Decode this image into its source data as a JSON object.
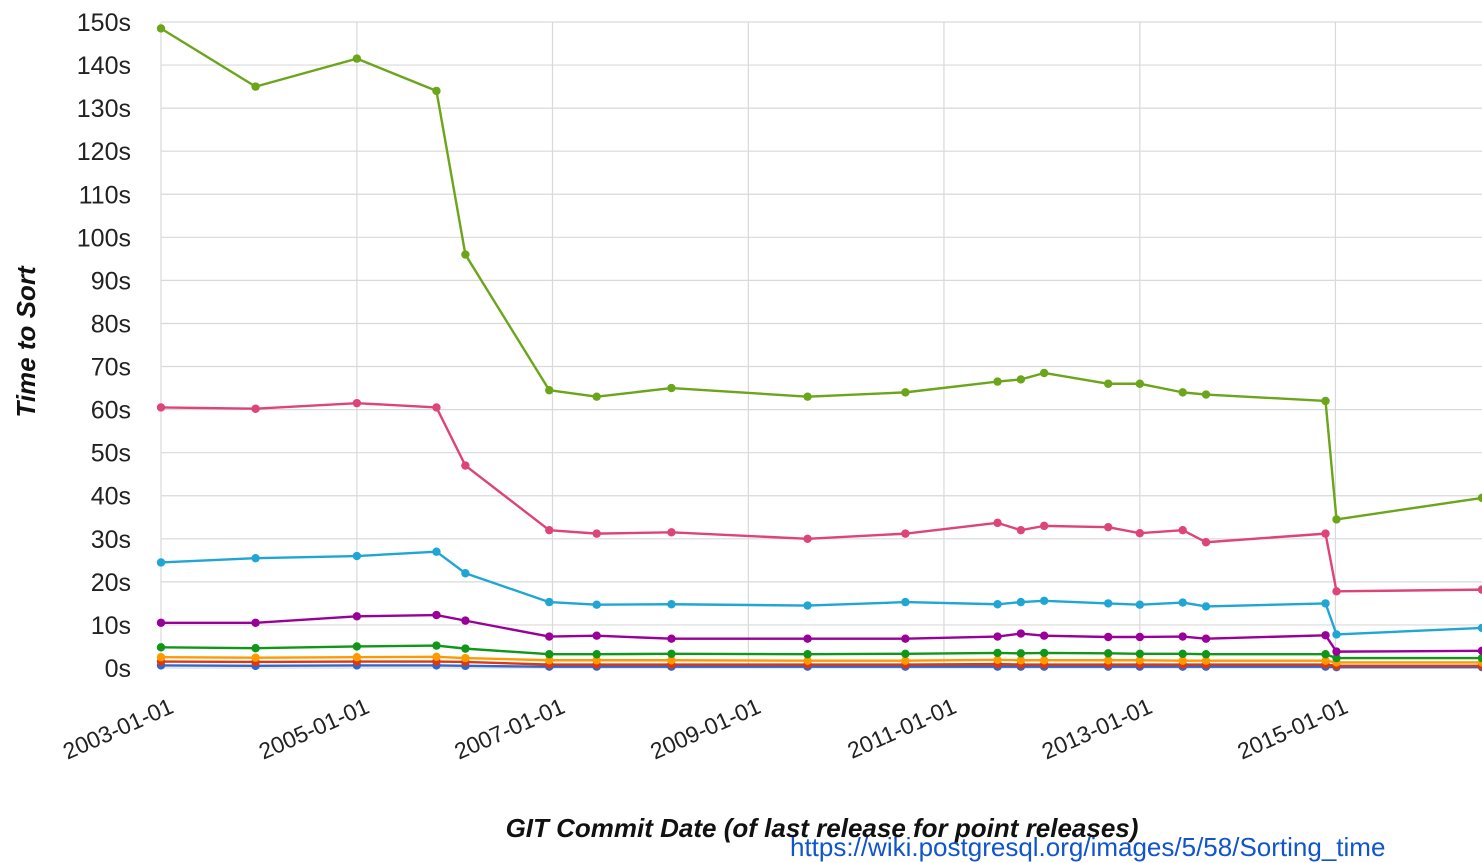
{
  "chart_data": {
    "type": "line",
    "title": "",
    "xlabel": "GIT Commit Date (of last release for point releases)",
    "ylabel": "Time to Sort",
    "x_axis": {
      "type": "date",
      "range": [
        "2003-01-01",
        "2016-07-01"
      ],
      "ticks": [
        "2003-01-01",
        "2005-01-01",
        "2007-01-01",
        "2009-01-01",
        "2011-01-01",
        "2013-01-01",
        "2015-01-01"
      ]
    },
    "y_axis": {
      "range": [
        0,
        150
      ],
      "ticks": [
        0,
        10,
        20,
        30,
        40,
        50,
        60,
        70,
        80,
        90,
        100,
        110,
        120,
        130,
        140,
        150
      ],
      "tick_labels": [
        "0s",
        "10s",
        "20s",
        "30s",
        "40s",
        "50s",
        "60s",
        "70s",
        "80s",
        "90s",
        "100s",
        "110s",
        "120s",
        "130s",
        "140s",
        "150s"
      ]
    },
    "grid": true,
    "legend": "none",
    "x": [
      "2003-01-01",
      "2003-12-20",
      "2005-01-01",
      "2005-10-25",
      "2006-02-10",
      "2006-12-20",
      "2007-06-15",
      "2008-03-20",
      "2009-08-10",
      "2010-08-10",
      "2011-07-20",
      "2011-10-15",
      "2012-01-10",
      "2012-09-05",
      "2013-01-01",
      "2013-06-10",
      "2013-09-05",
      "2014-11-25",
      "2015-01-05",
      "2016-07-01"
    ],
    "series": [
      {
        "color": "#6aa51a",
        "values": [
          148.5,
          135,
          141.5,
          134,
          96,
          64.5,
          63,
          65,
          63,
          64,
          66.5,
          67,
          68.5,
          66,
          66,
          64,
          63.5,
          62,
          34.5,
          39.5
        ]
      },
      {
        "color": "#dd4477",
        "values": [
          60.5,
          60.2,
          61.5,
          60.5,
          47,
          32,
          31.2,
          31.5,
          30,
          31.2,
          33.7,
          32,
          33,
          32.7,
          31.3,
          32,
          29.2,
          31.2,
          17.8,
          18.2
        ]
      },
      {
        "color": "#1fa6d4",
        "values": [
          24.5,
          25.5,
          26,
          27,
          22,
          15.3,
          14.7,
          14.8,
          14.5,
          15.3,
          14.8,
          15.3,
          15.6,
          15,
          14.7,
          15.2,
          14.3,
          15,
          7.8,
          9.3
        ]
      },
      {
        "color": "#990099",
        "values": [
          10.5,
          10.5,
          12,
          12.3,
          11,
          7.3,
          7.5,
          6.8,
          6.8,
          6.8,
          7.3,
          8,
          7.5,
          7.2,
          7.2,
          7.3,
          6.8,
          7.6,
          3.8,
          4
        ]
      },
      {
        "color": "#109618",
        "values": [
          4.8,
          4.6,
          5,
          5.2,
          4.5,
          3.2,
          3.2,
          3.3,
          3.2,
          3.3,
          3.5,
          3.4,
          3.5,
          3.4,
          3.3,
          3.3,
          3.2,
          3.2,
          2.3,
          2.3
        ]
      },
      {
        "color": "#ff9900",
        "values": [
          2.5,
          2.4,
          2.5,
          2.6,
          2.3,
          1.8,
          1.8,
          1.8,
          1.7,
          1.7,
          1.9,
          1.8,
          1.8,
          1.8,
          1.8,
          1.7,
          1.7,
          1.7,
          1.3,
          1.3
        ]
      },
      {
        "color": "#dc3912",
        "values": [
          1.5,
          1.4,
          1.5,
          1.5,
          1.4,
          0.8,
          0.8,
          0.8,
          0.8,
          0.8,
          0.9,
          0.8,
          0.8,
          0.8,
          0.8,
          0.8,
          0.8,
          0.8,
          0.5,
          0.5
        ]
      },
      {
        "color": "#3366cc",
        "values": [
          0.6,
          0.5,
          0.6,
          0.6,
          0.5,
          0.3,
          0.3,
          0.3,
          0.3,
          0.3,
          0.3,
          0.3,
          0.3,
          0.3,
          0.3,
          0.3,
          0.3,
          0.3,
          0.2,
          0.2
        ]
      }
    ]
  },
  "footer": {
    "source_link": "https://wiki.postgresql.org/images/5/58/Sorting_time"
  }
}
